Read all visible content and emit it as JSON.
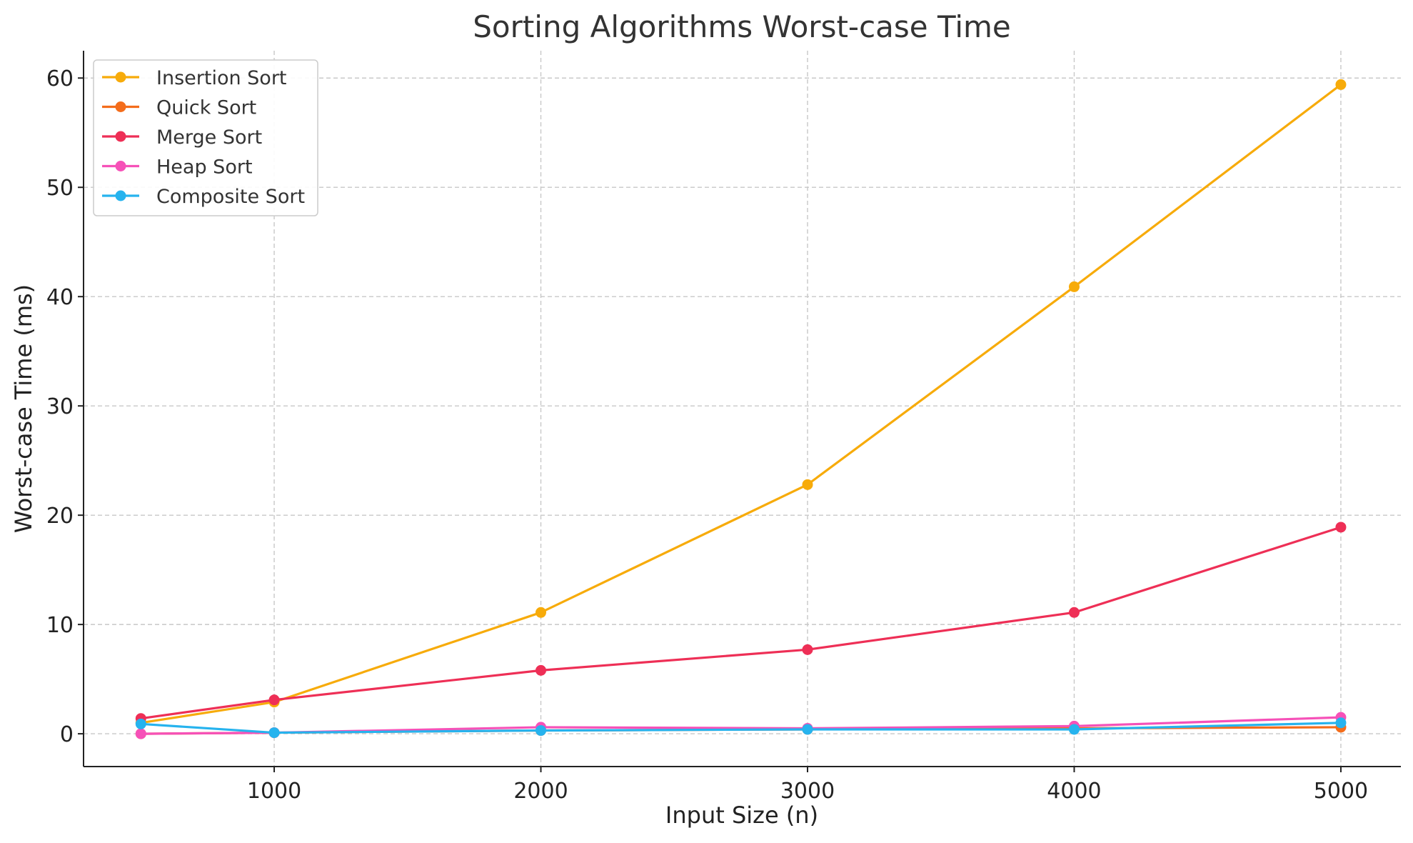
{
  "chart_data": {
    "type": "line",
    "title": "Sorting Algorithms Worst-case Time",
    "xlabel": "Input Size (n)",
    "ylabel": "Worst-case Time (ms)",
    "x": [
      500,
      1000,
      2000,
      3000,
      4000,
      5000
    ],
    "xlim": [
      285,
      5225
    ],
    "ylim": [
      -3,
      62.5
    ],
    "xticks": [
      1000,
      2000,
      3000,
      4000,
      5000
    ],
    "yticks": [
      0,
      10,
      20,
      30,
      40,
      50,
      60
    ],
    "grid": true,
    "legend_position": "top-left",
    "series": [
      {
        "name": "Insertion Sort",
        "color": "#f7ab0a",
        "values": [
          1.0,
          2.9,
          11.1,
          22.8,
          40.9,
          59.4
        ]
      },
      {
        "name": "Quick Sort",
        "color": "#f46d1b",
        "values": [
          0.0,
          0.1,
          0.3,
          0.4,
          0.5,
          0.6
        ]
      },
      {
        "name": "Merge Sort",
        "color": "#ee2f56",
        "values": [
          1.4,
          3.1,
          5.8,
          7.7,
          11.1,
          18.9
        ]
      },
      {
        "name": "Heap Sort",
        "color": "#f651b8",
        "values": [
          0.0,
          0.1,
          0.6,
          0.5,
          0.7,
          1.5
        ]
      },
      {
        "name": "Composite Sort",
        "color": "#26b3ee",
        "values": [
          0.9,
          0.1,
          0.3,
          0.4,
          0.4,
          1.0
        ]
      }
    ]
  }
}
